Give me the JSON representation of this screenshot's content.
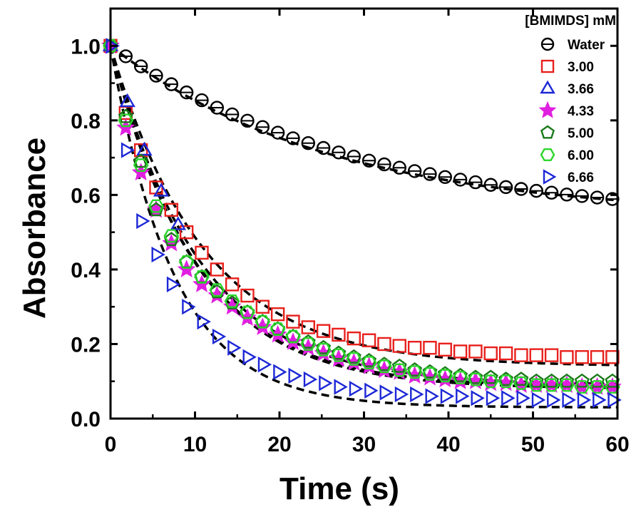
{
  "chart_data": {
    "type": "scatter",
    "xlabel": "Time (s)",
    "ylabel": "Absorbance",
    "xlim": [
      0,
      60
    ],
    "ylim": [
      0,
      1.1
    ],
    "x_ticks": [
      "0",
      "10",
      "20",
      "30",
      "40",
      "50",
      "60"
    ],
    "y_ticks": [
      "0.0",
      "0.2",
      "0.4",
      "0.6",
      "0.8",
      "1.0"
    ],
    "grid": false,
    "legend": {
      "title": "[BMIMDS] mM",
      "position": "top-right"
    },
    "series": [
      {
        "name": "Water",
        "marker": "circle",
        "color": "#000000",
        "x": [
          0,
          1.8,
          3.6,
          5.4,
          7.2,
          9,
          10.8,
          12.6,
          14.4,
          16.2,
          18,
          19.8,
          21.6,
          23.4,
          25.2,
          27,
          28.8,
          30.6,
          32.4,
          34.2,
          36,
          37.8,
          39.6,
          41.4,
          43.2,
          45,
          46.8,
          48.6,
          50.4,
          52.2,
          54,
          55.8,
          57.6,
          59.4
        ],
        "y": [
          1.0,
          0.972,
          0.945,
          0.92,
          0.897,
          0.875,
          0.854,
          0.834,
          0.816,
          0.799,
          0.782,
          0.767,
          0.752,
          0.739,
          0.726,
          0.714,
          0.703,
          0.692,
          0.682,
          0.673,
          0.664,
          0.656,
          0.648,
          0.641,
          0.634,
          0.627,
          0.621,
          0.616,
          0.611,
          0.606,
          0.601,
          0.597,
          0.593,
          0.589
        ],
        "fit": {
          "y0": 0.54,
          "a": 0.46,
          "tau": 26
        }
      },
      {
        "name": "3.00",
        "marker": "square",
        "color": "#e8201c",
        "x": [
          0,
          1.8,
          3.6,
          5.4,
          7.2,
          9,
          10.8,
          12.6,
          14.4,
          16.2,
          18,
          19.8,
          21.6,
          23.4,
          25.2,
          27,
          28.8,
          30.6,
          32.4,
          34.2,
          36,
          37.8,
          39.6,
          41.4,
          43.2,
          45,
          46.8,
          48.6,
          50.4,
          52.2,
          54,
          55.8,
          57.6,
          59.4
        ],
        "y": [
          1.0,
          0.82,
          0.72,
          0.62,
          0.56,
          0.5,
          0.445,
          0.4,
          0.36,
          0.33,
          0.3,
          0.28,
          0.26,
          0.245,
          0.235,
          0.225,
          0.215,
          0.21,
          0.2,
          0.195,
          0.19,
          0.19,
          0.185,
          0.18,
          0.18,
          0.175,
          0.175,
          0.17,
          0.17,
          0.17,
          0.165,
          0.165,
          0.165,
          0.165
        ],
        "fit": {
          "y0": 0.14,
          "a": 0.86,
          "tau": 11
        }
      },
      {
        "name": "3.66",
        "marker": "triangle",
        "color": "#1c27d6",
        "x": [
          0,
          2,
          4,
          6,
          8
        ],
        "y": [
          1.0,
          0.85,
          0.72,
          0.61,
          0.52
        ]
      },
      {
        "name": "4.33",
        "marker": "star",
        "color": "#e01fe0",
        "x": [
          0,
          1.8,
          3.6,
          5.4,
          7.2,
          9,
          10.8,
          12.6,
          14.4,
          16.2,
          18,
          19.8,
          21.6,
          23.4,
          25.2,
          27,
          28.8,
          30.6,
          32.4,
          34.2,
          36,
          37.8,
          39.6,
          41.4,
          43.2,
          45,
          46.8,
          48.6,
          50.4,
          52.2,
          54,
          55.8,
          57.6,
          59.4
        ],
        "y": [
          1.0,
          0.78,
          0.66,
          0.56,
          0.47,
          0.4,
          0.36,
          0.33,
          0.3,
          0.27,
          0.245,
          0.225,
          0.205,
          0.19,
          0.175,
          0.16,
          0.15,
          0.14,
          0.13,
          0.125,
          0.115,
          0.11,
          0.105,
          0.1,
          0.1,
          0.095,
          0.095,
          0.09,
          0.09,
          0.09,
          0.09,
          0.085,
          0.085,
          0.085
        ],
        "fit": {
          "y0": 0.08,
          "a": 0.92,
          "tau": 10
        }
      },
      {
        "name": "5.00",
        "marker": "pentagon",
        "color": "#1a7a1a",
        "x": [
          0,
          1.8,
          3.6,
          5.4,
          7.2,
          9,
          10.8,
          12.6,
          14.4,
          16.2,
          18,
          19.8,
          21.6,
          23.4,
          25.2,
          27,
          28.8,
          30.6,
          32.4,
          34.2,
          36,
          37.8,
          39.6,
          41.4,
          43.2,
          45,
          46.8,
          48.6,
          50.4,
          52.2,
          54,
          55.8,
          57.6,
          59.4
        ],
        "y": [
          1.0,
          0.81,
          0.69,
          0.56,
          0.48,
          0.42,
          0.38,
          0.34,
          0.31,
          0.285,
          0.26,
          0.24,
          0.22,
          0.205,
          0.19,
          0.175,
          0.165,
          0.155,
          0.145,
          0.14,
          0.13,
          0.125,
          0.12,
          0.115,
          0.11,
          0.11,
          0.105,
          0.105,
          0.1,
          0.1,
          0.1,
          0.1,
          0.1,
          0.1
        ],
        "fit": {
          "y0": 0.09,
          "a": 0.91,
          "tau": 10.5
        }
      },
      {
        "name": "6.00",
        "marker": "hexagon",
        "color": "#2bd62b",
        "x": [
          0,
          1.8,
          3.6,
          5.4,
          7.2,
          9,
          10.8,
          12.6,
          14.4,
          16.2,
          18,
          19.8,
          21.6,
          23.4,
          25.2,
          27,
          28.8,
          30.6,
          32.4,
          34.2,
          36,
          37.8,
          39.6,
          41.4,
          43.2,
          45,
          46.8,
          48.6,
          50.4,
          52.2,
          54,
          55.8,
          57.6,
          59.4
        ],
        "y": [
          1.0,
          0.8,
          0.68,
          0.57,
          0.49,
          0.42,
          0.38,
          0.345,
          0.315,
          0.285,
          0.26,
          0.24,
          0.22,
          0.2,
          0.185,
          0.17,
          0.16,
          0.15,
          0.14,
          0.13,
          0.125,
          0.12,
          0.115,
          0.11,
          0.105,
          0.1,
          0.1,
          0.095,
          0.09,
          0.09,
          0.09,
          0.085,
          0.085,
          0.085
        ],
        "fit": {
          "y0": 0.085,
          "a": 0.915,
          "tau": 10
        }
      },
      {
        "name": "6.66",
        "marker": "triangle-right",
        "color": "#1c27d6",
        "x": [
          0,
          1.8,
          3.6,
          5.4,
          7.2,
          9,
          10.8,
          12.6,
          14.4,
          16.2,
          18,
          19.8,
          21.6,
          23.4,
          25.2,
          27,
          28.8,
          30.6,
          32.4,
          34.2,
          36,
          37.8,
          39.6,
          41.4,
          43.2,
          45,
          46.8,
          48.6,
          50.4,
          52.2,
          54,
          55.8,
          57.6,
          59.4
        ],
        "y": [
          1.0,
          0.72,
          0.53,
          0.44,
          0.36,
          0.3,
          0.26,
          0.22,
          0.19,
          0.165,
          0.145,
          0.125,
          0.115,
          0.105,
          0.095,
          0.085,
          0.08,
          0.075,
          0.07,
          0.065,
          0.065,
          0.06,
          0.06,
          0.06,
          0.055,
          0.055,
          0.055,
          0.055,
          0.05,
          0.05,
          0.05,
          0.05,
          0.05,
          0.05
        ],
        "fit": {
          "y0": 0.03,
          "a": 0.97,
          "tau": 7.5
        }
      }
    ]
  }
}
